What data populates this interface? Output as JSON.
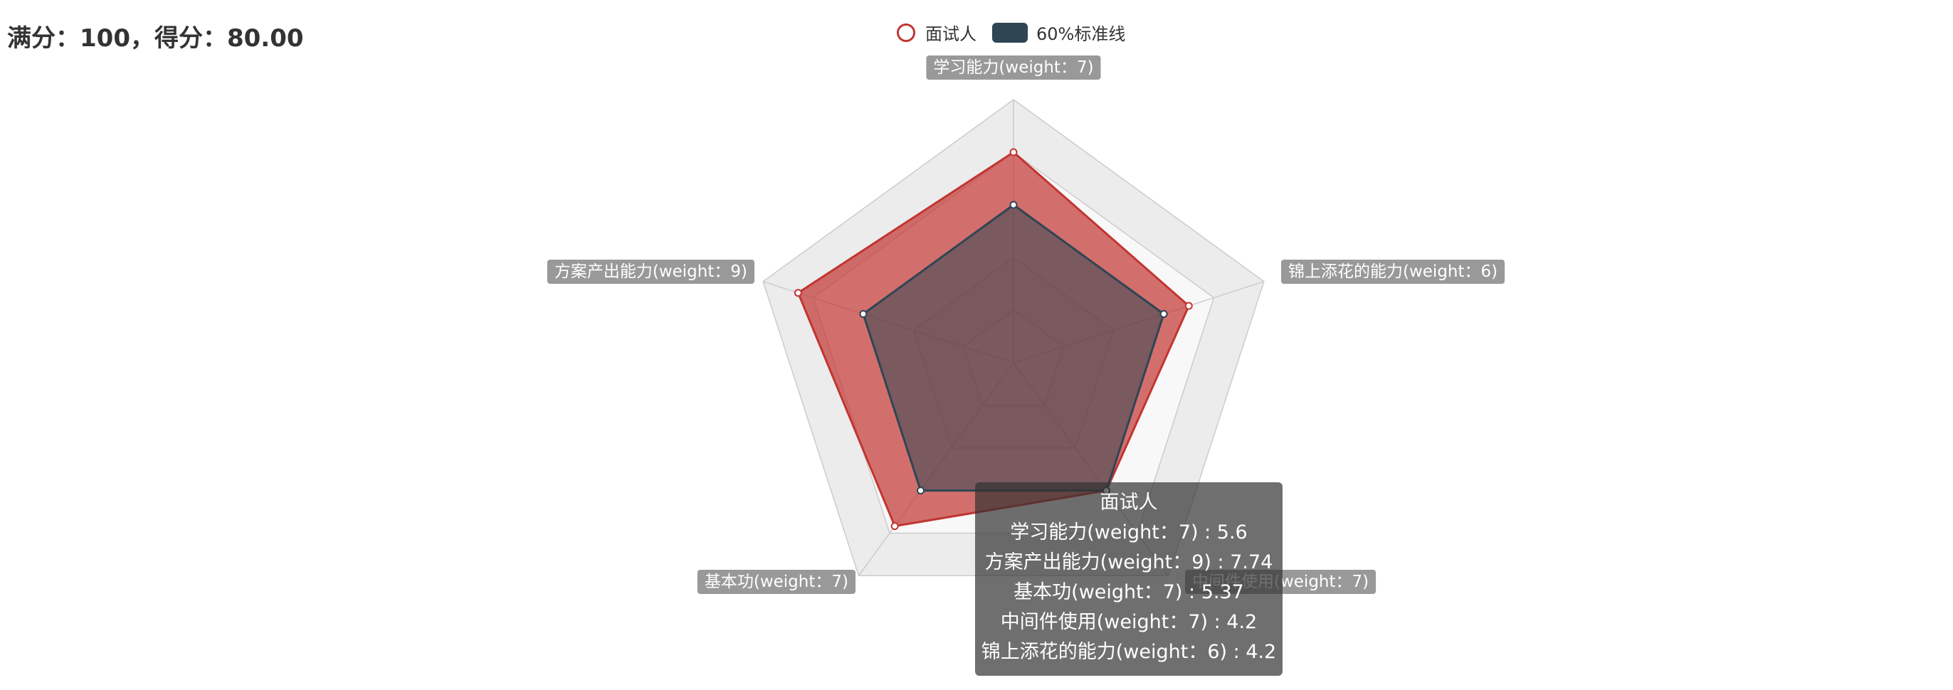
{
  "header": {
    "score_text": "满分：100，得分：80.00"
  },
  "legend": {
    "items": [
      {
        "label": "面试人",
        "color": "#c23531"
      },
      {
        "label": "60%标准线",
        "color": "#2f4554"
      }
    ]
  },
  "chart_data": {
    "type": "radar",
    "indicators": [
      {
        "name": "学习能力(weight：7)",
        "max": 7
      },
      {
        "name": "锦上添花的能力(weight：6)",
        "max": 6
      },
      {
        "name": "中间件使用(weight：7)",
        "max": 7
      },
      {
        "name": "基本功(weight：7)",
        "max": 7
      },
      {
        "name": "方案产出能力(weight：9)",
        "max": 9
      }
    ],
    "series": [
      {
        "name": "面试人",
        "color": "#c23531",
        "values": [
          5.6,
          4.2,
          4.2,
          5.37,
          7.74
        ]
      },
      {
        "name": "60%标准线",
        "color": "#2f4554",
        "values": [
          4.2,
          3.6,
          4.2,
          4.2,
          5.4
        ]
      }
    ],
    "split_number": 5,
    "legend_position": "top-center"
  },
  "tooltip": {
    "title": "面试人",
    "rows": [
      "学习能力(weight：7) : 5.6",
      "方案产出能力(weight：9) : 7.74",
      "基本功(weight：7) : 5.37",
      "中间件使用(weight：7) : 4.2",
      "锦上添花的能力(weight：6) : 4.2"
    ]
  }
}
